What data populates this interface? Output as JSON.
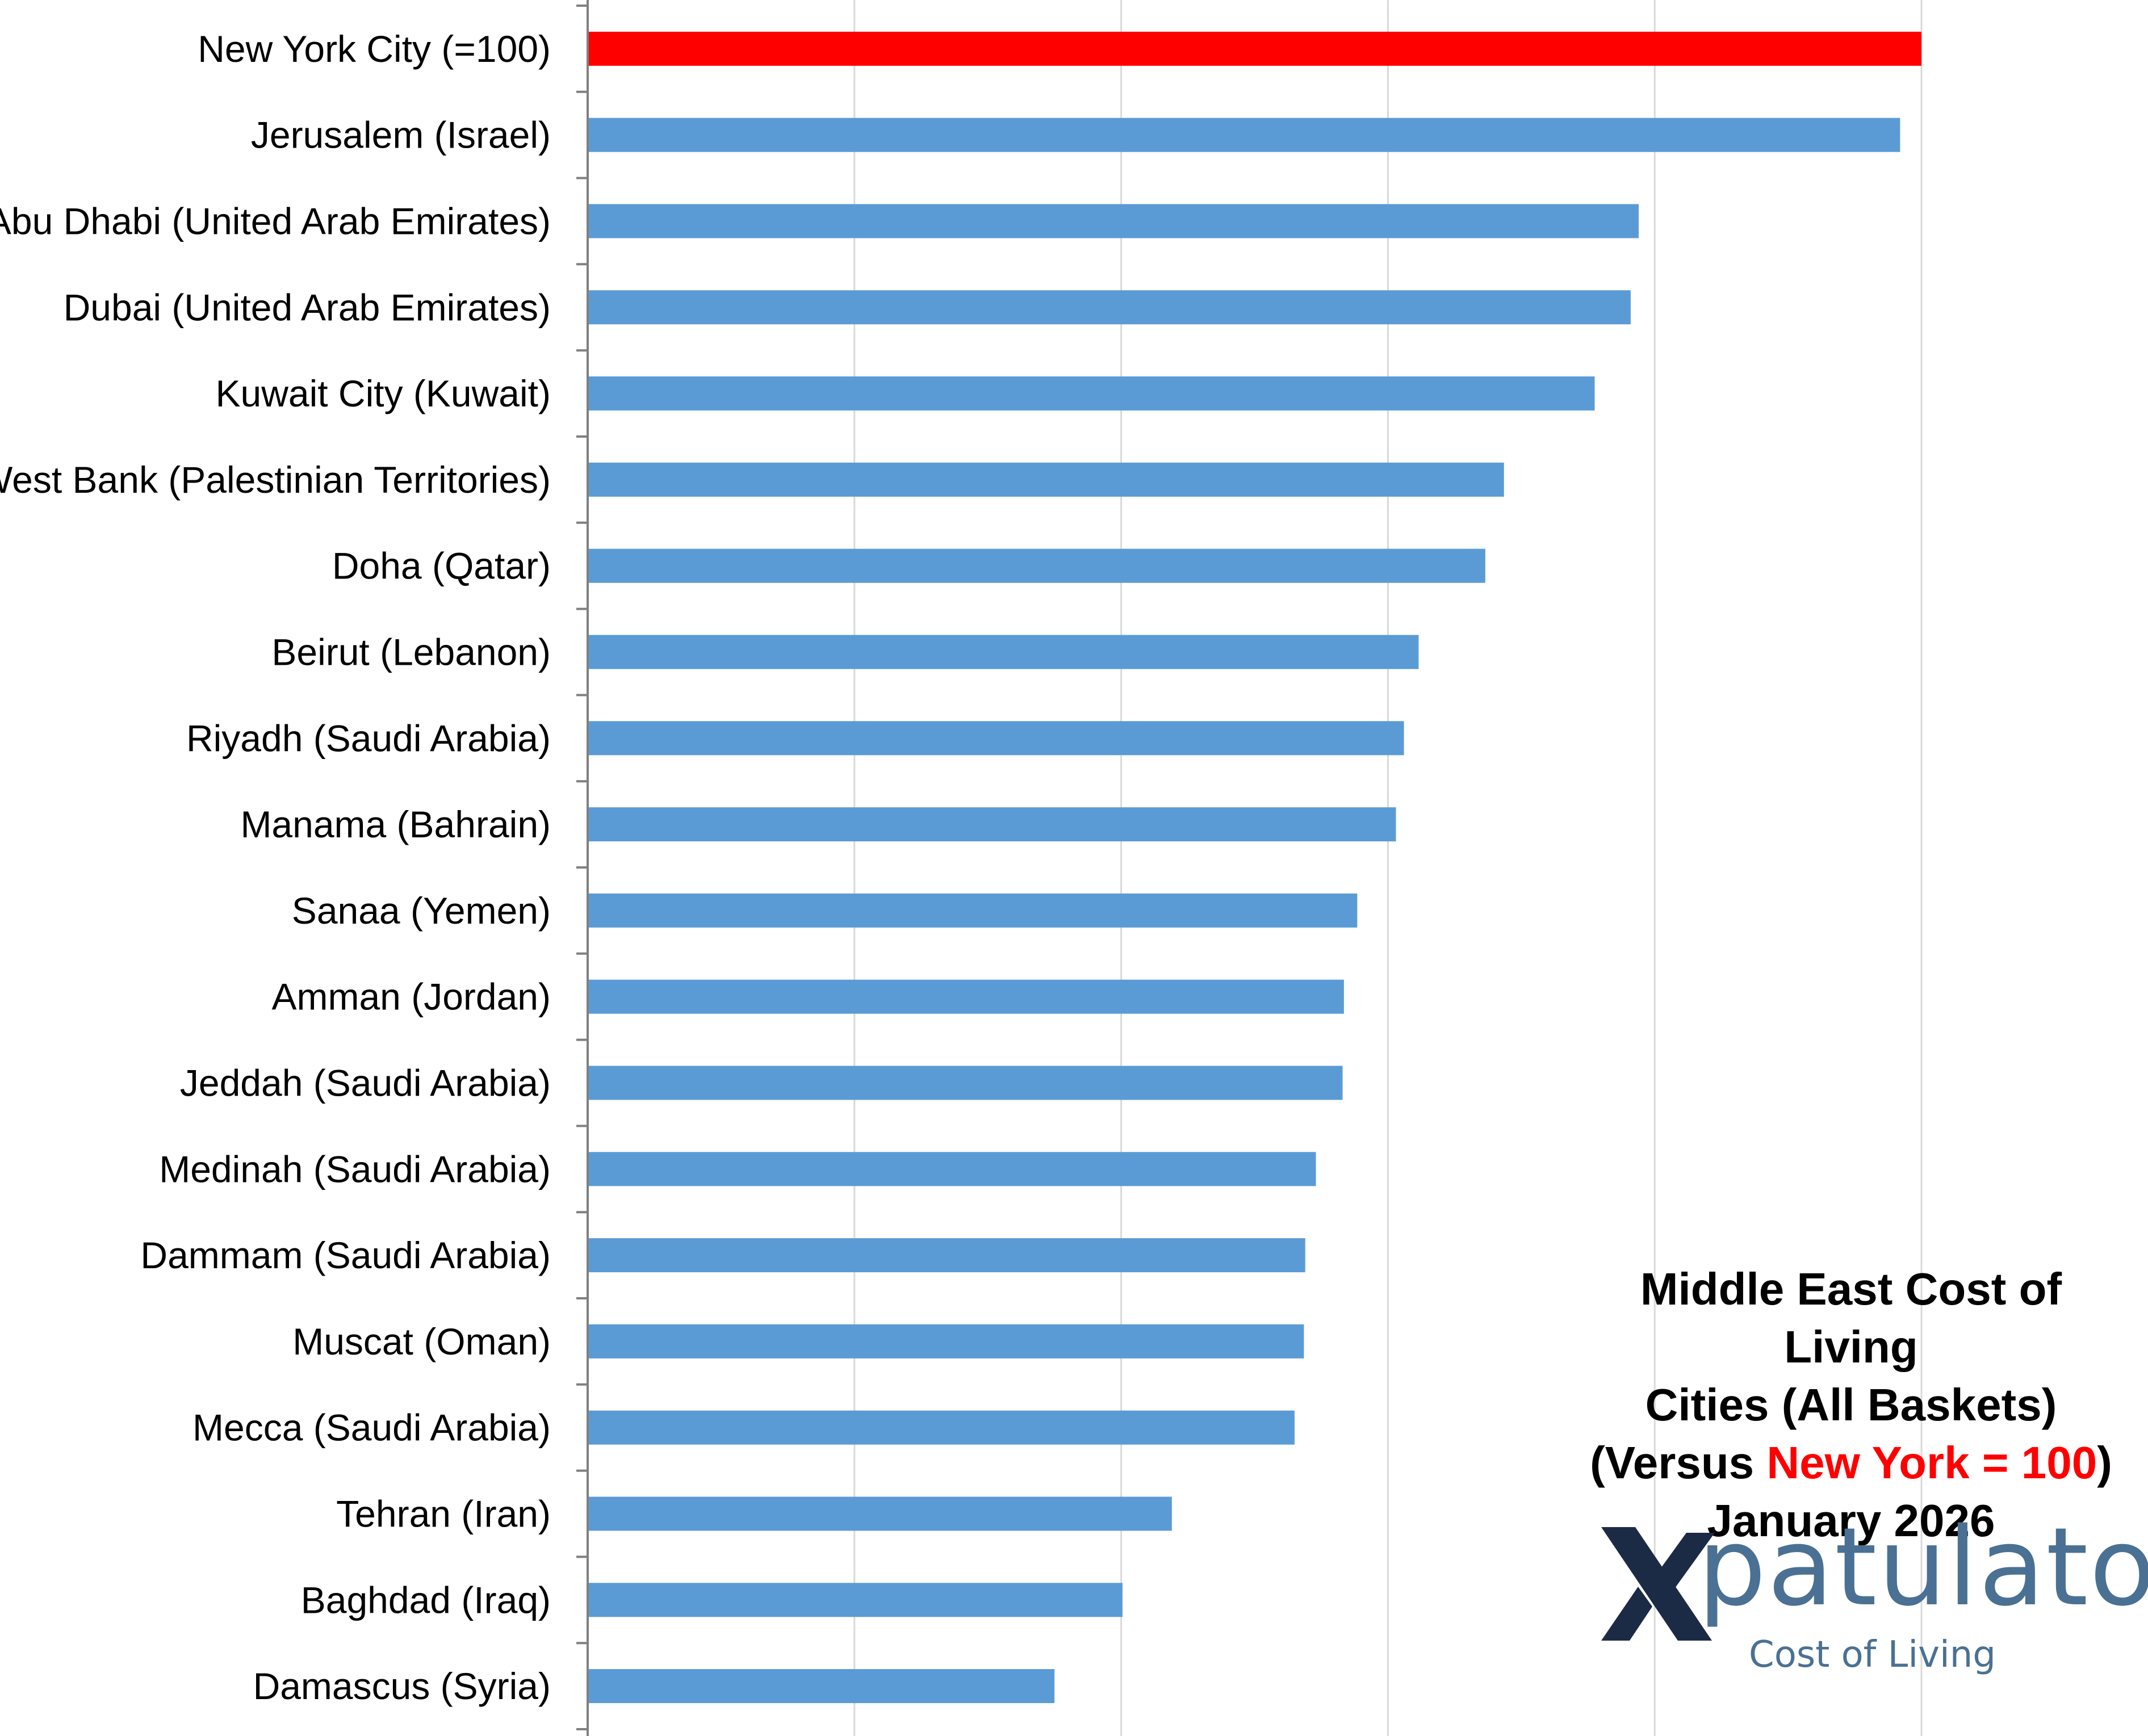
{
  "chart_data": {
    "type": "bar",
    "orientation": "horizontal",
    "categories": [
      "New York City (=100)",
      "Jerusalem (Israel)",
      "Abu Dhabi (United Arab Emirates)",
      "Dubai (United Arab Emirates)",
      "Kuwait City (Kuwait)",
      "West Bank (Palestinian Territories)",
      "Doha (Qatar)",
      "Beirut (Lebanon)",
      "Riyadh (Saudi Arabia)",
      "Manama (Bahrain)",
      "Sanaa (Yemen)",
      "Amman (Jordan)",
      "Jeddah (Saudi Arabia)",
      "Medinah (Saudi Arabia)",
      "Dammam (Saudi Arabia)",
      "Muscat (Oman)",
      "Mecca (Saudi Arabia)",
      "Tehran (Iran)",
      "Baghdad (Iraq)",
      "Damascus (Syria)"
    ],
    "values": [
      100,
      98.4,
      78.8,
      78.2,
      75.5,
      68.7,
      67.3,
      62.3,
      61.2,
      60.6,
      57.7,
      56.7,
      56.6,
      54.6,
      53.8,
      53.7,
      53.0,
      43.8,
      40.1,
      35.0
    ],
    "xlim": [
      0,
      100
    ],
    "grid": true,
    "highlight_index": 0,
    "colors": {
      "bar": "#5b9bd5",
      "highlight": "#ff0000",
      "grid": "#d9d9d9",
      "axis": "#808080"
    }
  },
  "title": {
    "line1": "Middle East  Cost of Living",
    "line2": "Cities (All Baskets)",
    "line3_prefix": "(Versus ",
    "line3_highlight": "New York = 100",
    "line3_suffix": ")",
    "line4": "January 2026"
  },
  "logo": {
    "word": "patulator",
    "sub": "Cost of Living",
    "icon": "xpatulator-x-icon"
  }
}
